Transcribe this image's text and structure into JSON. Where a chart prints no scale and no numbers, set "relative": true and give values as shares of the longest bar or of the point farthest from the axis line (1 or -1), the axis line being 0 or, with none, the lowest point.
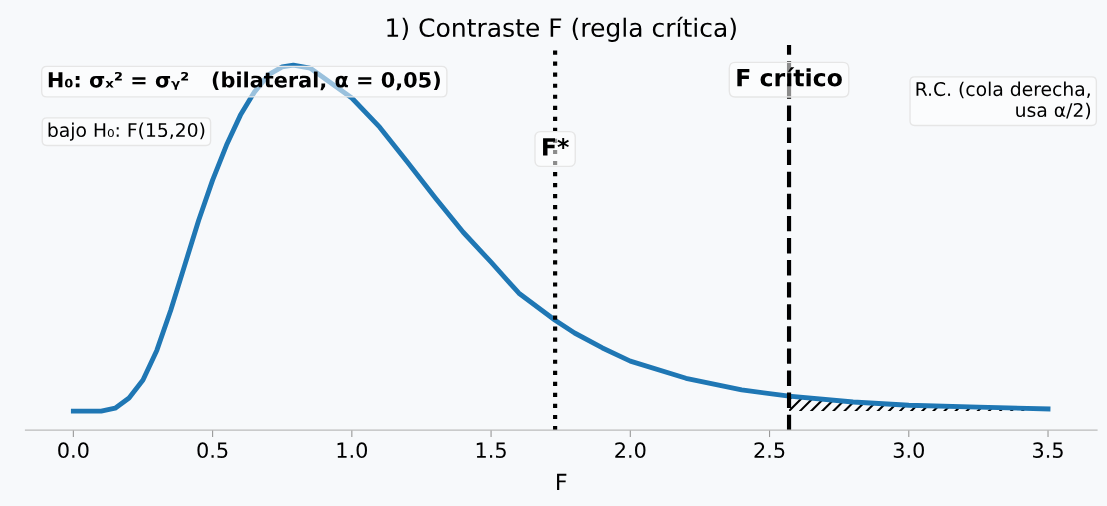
{
  "chart_data": {
    "type": "line",
    "title": "1) Contraste F (regla crítica)",
    "xlabel": "F",
    "relative": true,
    "x": [
      0,
      0.1,
      0.15,
      0.2,
      0.25,
      0.3,
      0.35,
      0.4,
      0.45,
      0.5,
      0.55,
      0.6,
      0.65,
      0.7,
      0.75,
      0.79,
      0.85,
      1.0,
      1.1,
      1.2,
      1.3,
      1.4,
      1.5,
      1.6,
      1.73,
      1.8,
      1.9,
      2.0,
      2.2,
      2.4,
      2.57,
      2.8,
      3.0,
      3.25,
      3.5
    ],
    "series": [
      {
        "color": "#1f77b4",
        "values": [
          0.052,
          0.052,
          0.06,
          0.088,
          0.137,
          0.219,
          0.329,
          0.452,
          0.575,
          0.685,
          0.781,
          0.863,
          0.926,
          0.973,
          0.995,
          1.0,
          0.992,
          0.91,
          0.83,
          0.734,
          0.636,
          0.542,
          0.46,
          0.375,
          0.301,
          0.266,
          0.225,
          0.189,
          0.142,
          0.11,
          0.093,
          0.077,
          0.068,
          0.063,
          0.058
        ]
      }
    ],
    "xlim": [
      -0.172,
      3.676
    ],
    "xticks": [
      {
        "value": 0,
        "label": "0.0"
      },
      {
        "value": 0.5,
        "label": "0.5"
      },
      {
        "value": 1,
        "label": "1.0"
      },
      {
        "value": 1.5,
        "label": "1.5"
      },
      {
        "value": 2,
        "label": "2.0"
      },
      {
        "value": 2.5,
        "label": "2.5"
      },
      {
        "value": 3,
        "label": "3.0"
      },
      {
        "value": 3.5,
        "label": "3.5"
      }
    ],
    "ref_lines": [
      {
        "axis": "x",
        "value": 1.73,
        "label": "F*",
        "color": "#000000",
        "line_style": "dotted"
      },
      {
        "axis": "x",
        "value": 2.57,
        "label": "F crítico",
        "color": "#000000",
        "line_style": "dashed"
      }
    ],
    "bands": [
      {
        "axis": "x",
        "from": 2.57,
        "to": 3.5,
        "label": "R.C. (cola derecha,\nusa α/2)"
      }
    ],
    "annotations": [
      "H₀: σₓ² = σᵧ²   (bilateral, α = 0,05)",
      "bajo H₀: F(15,20)"
    ],
    "grid": false,
    "legend": false,
    "marker": "none",
    "line_style": "solid"
  }
}
